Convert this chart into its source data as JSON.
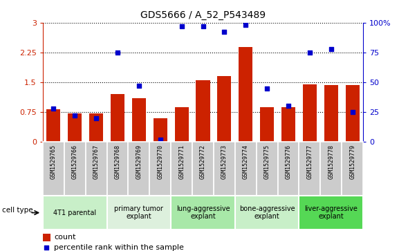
{
  "title": "GDS5666 / A_52_P543489",
  "samples": [
    "GSM1529765",
    "GSM1529766",
    "GSM1529767",
    "GSM1529768",
    "GSM1529769",
    "GSM1529770",
    "GSM1529771",
    "GSM1529772",
    "GSM1529773",
    "GSM1529774",
    "GSM1529775",
    "GSM1529776",
    "GSM1529777",
    "GSM1529778",
    "GSM1529779"
  ],
  "counts": [
    0.82,
    0.72,
    0.72,
    1.2,
    1.1,
    0.6,
    0.88,
    1.55,
    1.65,
    2.38,
    0.87,
    0.87,
    1.45,
    1.42,
    1.42
  ],
  "percentiles": [
    28,
    22,
    20,
    75,
    47,
    2,
    97,
    97,
    92,
    98,
    45,
    30,
    75,
    78,
    25
  ],
  "cell_types": [
    {
      "label": "4T1 parental",
      "start": 0,
      "end": 3,
      "color": "#c8efc8"
    },
    {
      "label": "primary tumor\nexplant",
      "start": 3,
      "end": 6,
      "color": "#ddf0dd"
    },
    {
      "label": "lung-aggressive\nexplant",
      "start": 6,
      "end": 9,
      "color": "#a8e8a8"
    },
    {
      "label": "bone-aggressive\nexplant",
      "start": 9,
      "end": 12,
      "color": "#c8efc8"
    },
    {
      "label": "liver-aggressive\nexplant",
      "start": 12,
      "end": 15,
      "color": "#55d855"
    }
  ],
  "bar_color": "#cc2200",
  "dot_color": "#0000cc",
  "left_axis_color": "#cc2200",
  "right_axis_color": "#0000cc",
  "ylim_left": [
    0,
    3.0
  ],
  "ylim_right": [
    0,
    100
  ],
  "yticks_left": [
    0,
    0.75,
    1.5,
    2.25,
    3.0
  ],
  "yticks_right": [
    0,
    25,
    50,
    75,
    100
  ],
  "yticklabels_left": [
    "0",
    "0.75",
    "1.5",
    "2.25",
    "3"
  ],
  "yticklabels_right": [
    "0",
    "25",
    "50",
    "75",
    "100%"
  ],
  "cell_type_label": "cell type",
  "legend_count": "count",
  "legend_pct": "percentile rank within the sample",
  "gsm_box_color": "#cccccc",
  "gsm_box_edge": "#aaaaaa"
}
